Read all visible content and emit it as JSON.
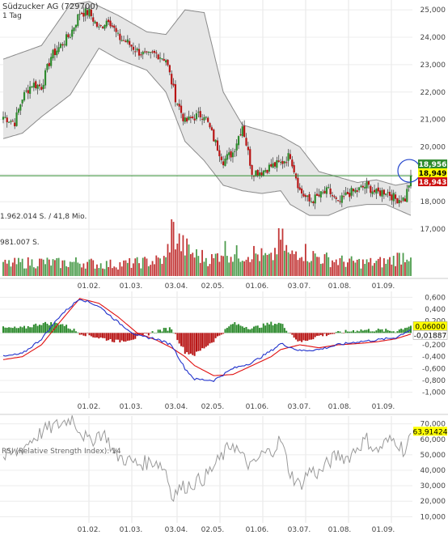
{
  "header": {
    "title": "Südzucker AG (729700)",
    "interval": "1 Tag"
  },
  "colors": {
    "up": "#2e8b2e",
    "down": "#b81414",
    "band_fill": "#e6e6e6",
    "band_line": "#8a8a8a",
    "macd_line": "#2233cc",
    "signal_line": "#e01010",
    "rsi_line": "#9a9a9a",
    "hline": "#2e8b2e",
    "marker_circle": "#2244cc",
    "tag_yellow": "#ffff00",
    "tag_green": "#2e8b2e",
    "tag_red": "#cc1111"
  },
  "chart_data": [
    {
      "type": "candlestick",
      "title": "Südzucker AG (729700)",
      "subtitle": "1 Tag",
      "x_labels": [
        "01.02.",
        "01.03.",
        "03.04.",
        "02.05.",
        "01.06.",
        "03.07.",
        "01.08.",
        "01.09."
      ],
      "y_ticks": [
        17000,
        18000,
        19000,
        20000,
        21000,
        22000,
        23000,
        24000,
        25000
      ],
      "y_tick_labels": [
        "17,000",
        "18,000",
        "19,000",
        "20,000",
        "21,000",
        "22,000",
        "23,000",
        "24,000",
        "25,000"
      ],
      "ylim": [
        16500,
        25300
      ],
      "last_prices": {
        "high": "18,956",
        "last": "18,949",
        "low": "18,943"
      },
      "price_anchors": [
        [
          0,
          21100
        ],
        [
          6,
          20900
        ],
        [
          10,
          21800
        ],
        [
          15,
          22300
        ],
        [
          20,
          22200
        ],
        [
          25,
          23300
        ],
        [
          30,
          23700
        ],
        [
          35,
          24100
        ],
        [
          40,
          24900
        ],
        [
          45,
          24900
        ],
        [
          50,
          24300
        ],
        [
          55,
          24700
        ],
        [
          60,
          24000
        ],
        [
          65,
          23800
        ],
        [
          70,
          23500
        ],
        [
          75,
          23300
        ],
        [
          80,
          23400
        ],
        [
          85,
          23200
        ],
        [
          90,
          21800
        ],
        [
          95,
          20900
        ],
        [
          100,
          21100
        ],
        [
          105,
          21200
        ],
        [
          110,
          20300
        ],
        [
          115,
          19500
        ],
        [
          120,
          19800
        ],
        [
          125,
          20800
        ],
        [
          130,
          19100
        ],
        [
          135,
          19100
        ],
        [
          140,
          19300
        ],
        [
          145,
          19400
        ],
        [
          150,
          19700
        ],
        [
          155,
          18400
        ],
        [
          160,
          18000
        ],
        [
          165,
          18200
        ],
        [
          170,
          18400
        ],
        [
          175,
          17900
        ],
        [
          180,
          18300
        ],
        [
          185,
          18400
        ],
        [
          190,
          18600
        ],
        [
          195,
          18300
        ],
        [
          200,
          18400
        ],
        [
          205,
          18100
        ],
        [
          210,
          18100
        ],
        [
          213,
          18949
        ]
      ],
      "bollinger_upper_anchors": [
        [
          0,
          23200
        ],
        [
          20,
          23700
        ],
        [
          35,
          25200
        ],
        [
          45,
          25300
        ],
        [
          60,
          24800
        ],
        [
          75,
          24200
        ],
        [
          85,
          24100
        ],
        [
          95,
          25000
        ],
        [
          105,
          24900
        ],
        [
          115,
          22000
        ],
        [
          125,
          20800
        ],
        [
          135,
          20600
        ],
        [
          145,
          20400
        ],
        [
          155,
          20000
        ],
        [
          165,
          19100
        ],
        [
          175,
          18900
        ],
        [
          185,
          18700
        ],
        [
          195,
          18800
        ],
        [
          205,
          18600
        ],
        [
          213,
          18700
        ]
      ],
      "bollinger_lower_anchors": [
        [
          0,
          20300
        ],
        [
          10,
          20500
        ],
        [
          20,
          21100
        ],
        [
          35,
          21900
        ],
        [
          50,
          23600
        ],
        [
          60,
          23200
        ],
        [
          75,
          22800
        ],
        [
          85,
          22000
        ],
        [
          95,
          20200
        ],
        [
          105,
          19500
        ],
        [
          115,
          18600
        ],
        [
          125,
          18400
        ],
        [
          135,
          18300
        ],
        [
          145,
          18400
        ],
        [
          150,
          17900
        ],
        [
          160,
          17500
        ],
        [
          170,
          17500
        ],
        [
          180,
          17800
        ],
        [
          190,
          17900
        ],
        [
          200,
          17900
        ],
        [
          213,
          17500
        ]
      ],
      "horizontal_line": 18949
    },
    {
      "type": "bar",
      "title": "Volume",
      "labels": [
        "1.962.014 S. / 41,8 Mio.",
        "981.007 S."
      ],
      "volume_anchors": [
        [
          0,
          0.25
        ],
        [
          10,
          0.28
        ],
        [
          20,
          0.3
        ],
        [
          30,
          0.27
        ],
        [
          40,
          0.3
        ],
        [
          50,
          0.25
        ],
        [
          60,
          0.25
        ],
        [
          70,
          0.28
        ],
        [
          85,
          0.35
        ],
        [
          88,
          1.0
        ],
        [
          92,
          0.7
        ],
        [
          100,
          0.45
        ],
        [
          110,
          0.35
        ],
        [
          115,
          0.6
        ],
        [
          120,
          0.45
        ],
        [
          130,
          0.5
        ],
        [
          140,
          0.35
        ],
        [
          145,
          0.8
        ],
        [
          150,
          0.4
        ],
        [
          155,
          0.6
        ],
        [
          160,
          0.45
        ],
        [
          170,
          0.35
        ],
        [
          180,
          0.3
        ],
        [
          190,
          0.28
        ],
        [
          200,
          0.3
        ],
        [
          213,
          0.5
        ]
      ]
    },
    {
      "type": "line",
      "title": "MACD",
      "x_labels": [
        "01.02.",
        "01.03.",
        "03.04.",
        "02.05.",
        "01.06.",
        "03.07.",
        "01.08.",
        "01.09."
      ],
      "y_ticks": [
        0.6,
        0.4,
        0.2,
        0,
        -0.2,
        -0.4,
        -0.6,
        -0.8,
        -1.0
      ],
      "y_tick_labels": [
        "0,600",
        "0,400",
        "0,200",
        "",
        "-0,200",
        "-0,400",
        "-0,600",
        "-0,800",
        "-1,000"
      ],
      "ylim": [
        -1.1,
        0.7
      ],
      "last_values": {
        "macd": "0,06000",
        "signal": "-0,01887"
      },
      "macd_anchors": [
        [
          0,
          -0.4
        ],
        [
          10,
          -0.35
        ],
        [
          20,
          -0.1
        ],
        [
          30,
          0.3
        ],
        [
          40,
          0.58
        ],
        [
          50,
          0.45
        ],
        [
          60,
          0.18
        ],
        [
          70,
          -0.05
        ],
        [
          80,
          -0.1
        ],
        [
          88,
          -0.2
        ],
        [
          95,
          -0.6
        ],
        [
          100,
          -0.78
        ],
        [
          110,
          -0.8
        ],
        [
          120,
          -0.6
        ],
        [
          130,
          -0.5
        ],
        [
          140,
          -0.3
        ],
        [
          145,
          -0.18
        ],
        [
          155,
          -0.3
        ],
        [
          165,
          -0.28
        ],
        [
          175,
          -0.2
        ],
        [
          185,
          -0.15
        ],
        [
          195,
          -0.12
        ],
        [
          205,
          -0.08
        ],
        [
          213,
          0.06
        ]
      ],
      "signal_anchors": [
        [
          0,
          -0.45
        ],
        [
          10,
          -0.4
        ],
        [
          20,
          -0.2
        ],
        [
          30,
          0.2
        ],
        [
          40,
          0.58
        ],
        [
          50,
          0.5
        ],
        [
          60,
          0.27
        ],
        [
          70,
          0.0
        ],
        [
          80,
          -0.12
        ],
        [
          88,
          -0.25
        ],
        [
          95,
          -0.4
        ],
        [
          100,
          -0.55
        ],
        [
          110,
          -0.72
        ],
        [
          120,
          -0.7
        ],
        [
          130,
          -0.55
        ],
        [
          140,
          -0.4
        ],
        [
          145,
          -0.28
        ],
        [
          155,
          -0.2
        ],
        [
          165,
          -0.25
        ],
        [
          175,
          -0.2
        ],
        [
          185,
          -0.18
        ],
        [
          195,
          -0.15
        ],
        [
          205,
          -0.1
        ],
        [
          213,
          -0.02
        ]
      ]
    },
    {
      "type": "line",
      "title": "RSI (Relative Strength Index): 14",
      "x_labels": [
        "01.02.",
        "01.03.",
        "03.04.",
        "02.05.",
        "01.06.",
        "03.07.",
        "01.08.",
        "01.09."
      ],
      "y_ticks": [
        10000,
        20000,
        30000,
        40000,
        50000,
        60000,
        70000
      ],
      "y_tick_labels": [
        "10,000",
        "20,000",
        "30,000",
        "40,000",
        "50,000",
        "60,000",
        "70,000"
      ],
      "ylim": [
        6000,
        74000
      ],
      "last_value": "63,91424",
      "rsi_anchors": [
        [
          0,
          48
        ],
        [
          8,
          52
        ],
        [
          15,
          60
        ],
        [
          22,
          66
        ],
        [
          30,
          70
        ],
        [
          36,
          74
        ],
        [
          40,
          66
        ],
        [
          45,
          58
        ],
        [
          50,
          64
        ],
        [
          54,
          62
        ],
        [
          58,
          50
        ],
        [
          62,
          48
        ],
        [
          70,
          44
        ],
        [
          80,
          46
        ],
        [
          85,
          40
        ],
        [
          88,
          24
        ],
        [
          92,
          28
        ],
        [
          96,
          30
        ],
        [
          100,
          32
        ],
        [
          105,
          35
        ],
        [
          110,
          42
        ],
        [
          115,
          50
        ],
        [
          120,
          58
        ],
        [
          125,
          48
        ],
        [
          130,
          42
        ],
        [
          135,
          50
        ],
        [
          140,
          52
        ],
        [
          145,
          60
        ],
        [
          150,
          38
        ],
        [
          155,
          30
        ],
        [
          160,
          40
        ],
        [
          165,
          38
        ],
        [
          170,
          45
        ],
        [
          175,
          50
        ],
        [
          180,
          48
        ],
        [
          185,
          55
        ],
        [
          190,
          60
        ],
        [
          195,
          52
        ],
        [
          200,
          58
        ],
        [
          205,
          60
        ],
        [
          210,
          52
        ],
        [
          213,
          64
        ]
      ]
    }
  ]
}
